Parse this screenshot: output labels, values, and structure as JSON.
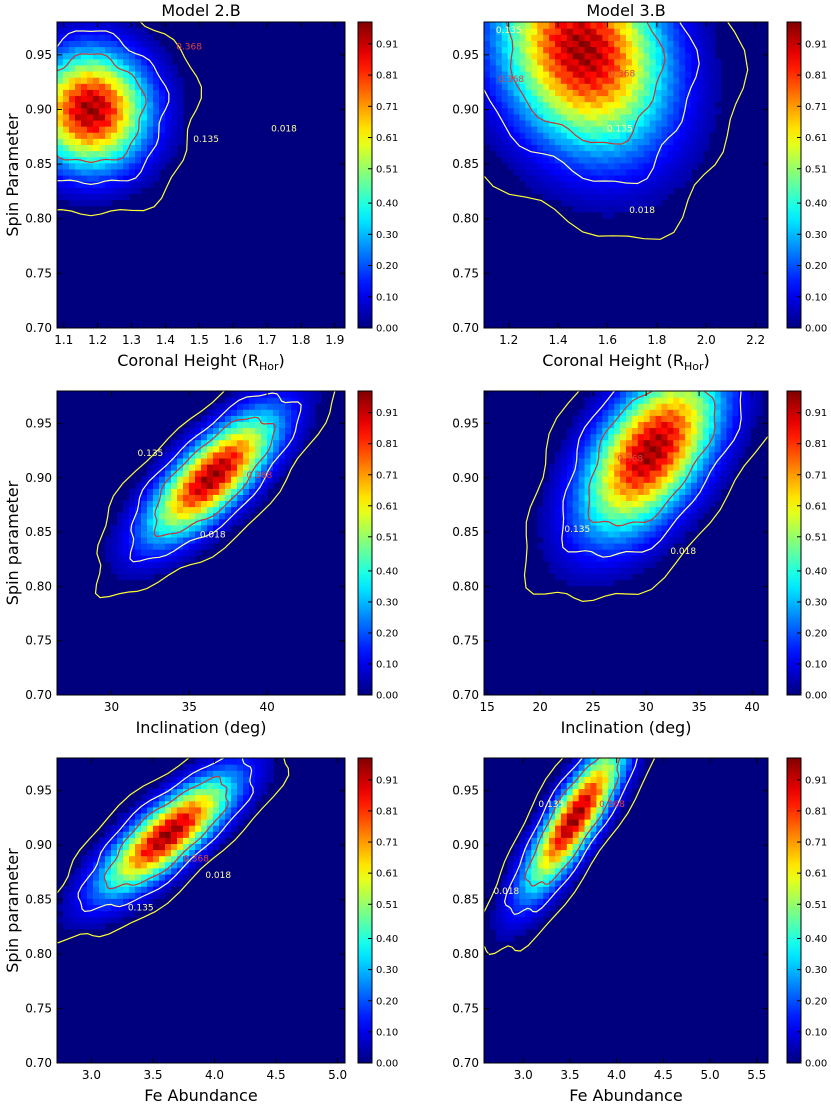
{
  "column_titles": [
    "Model 2.B",
    "Model 3.B"
  ],
  "colorbar_ticks": [
    "0.91",
    "0.81",
    "0.71",
    "0.61",
    "0.51",
    "0.40",
    "0.30",
    "0.20",
    "0.10",
    "0.00"
  ],
  "colors": {
    "low": "#00007f",
    "high": "#7f0000",
    "contour_outer": "#ffff33",
    "contour_mid": "#ffffaa",
    "contour_inner": "#cc3333"
  },
  "chart_data": [
    {
      "type": "heatmap",
      "model": "Model 2.B",
      "title": "Model 2.B",
      "ylabel": "Spin Parameter",
      "xlabel_main": "Coronal Height (R",
      "xlabel_sub": "Hor",
      "xlabel_end": ")",
      "xlim": [
        1.08,
        1.93
      ],
      "ylim": [
        0.7,
        0.98
      ],
      "xticks": [
        1.1,
        1.2,
        1.3,
        1.4,
        1.5,
        1.6,
        1.7,
        1.8,
        1.9
      ],
      "xticklabels": [
        "1.1",
        "1.2",
        "1.3",
        "1.4",
        "1.5",
        "1.6",
        "1.7",
        "1.8",
        "1.9"
      ],
      "yticks": [
        0.7,
        0.75,
        0.8,
        0.85,
        0.9,
        0.95
      ],
      "yticklabels": [
        "0.70",
        "0.75",
        "0.80",
        "0.85",
        "0.90",
        "0.95"
      ],
      "peak": {
        "x": 1.18,
        "y": 0.9,
        "sx": 0.11,
        "sy": 0.035,
        "rho": 0.0
      },
      "contour_labels": [
        {
          "text": "0.368",
          "x": 1.47,
          "y": 0.955
        },
        {
          "text": "0.135",
          "x": 1.52,
          "y": 0.87
        },
        {
          "text": "0.018",
          "x": 1.75,
          "y": 0.88
        }
      ]
    },
    {
      "type": "heatmap",
      "model": "Model 3.B",
      "title": "Model 3.B",
      "ylabel": "",
      "xlabel_main": "Coronal Height (R",
      "xlabel_sub": "Hor",
      "xlabel_end": ")",
      "xlim": [
        1.1,
        2.25
      ],
      "ylim": [
        0.7,
        0.98
      ],
      "xticks": [
        1.2,
        1.4,
        1.6,
        1.8,
        2.0,
        2.2
      ],
      "xticklabels": [
        "1.2",
        "1.4",
        "1.6",
        "1.8",
        "2.0",
        "2.2"
      ],
      "yticks": [
        0.7,
        0.75,
        0.8,
        0.85,
        0.9,
        0.95
      ],
      "yticklabels": [
        "0.70",
        "0.75",
        "0.80",
        "0.85",
        "0.90",
        "0.95"
      ],
      "peak": {
        "x": 1.5,
        "y": 0.955,
        "sx": 0.22,
        "sy": 0.06,
        "rho": -0.2
      },
      "contour_labels": [
        {
          "text": "0.368",
          "x": 1.66,
          "y": 0.93
        },
        {
          "text": "0.135",
          "x": 1.2,
          "y": 0.97
        },
        {
          "text": "0.368",
          "x": 1.21,
          "y": 0.925
        },
        {
          "text": "0.135",
          "x": 1.65,
          "y": 0.88
        },
        {
          "text": "0.018",
          "x": 1.74,
          "y": 0.805
        }
      ]
    },
    {
      "type": "heatmap",
      "model": "Model 2.B",
      "ylabel": "Spin parameter",
      "xlabel": "Inclination (deg)",
      "xlim": [
        26.5,
        45
      ],
      "ylim": [
        0.7,
        0.98
      ],
      "xticks": [
        30,
        35,
        40
      ],
      "xticklabels": [
        "30",
        "35",
        "40"
      ],
      "yticks": [
        0.7,
        0.75,
        0.8,
        0.85,
        0.9,
        0.95
      ],
      "yticklabels": [
        "0.70",
        "0.75",
        "0.80",
        "0.85",
        "0.90",
        "0.95"
      ],
      "peak": {
        "x": 36.5,
        "y": 0.902,
        "sx": 2.7,
        "sy": 0.038,
        "rho": 0.75
      },
      "contour_labels": [
        {
          "text": "0.135",
          "x": 32.5,
          "y": 0.92
        },
        {
          "text": "0.368",
          "x": 39.5,
          "y": 0.9
        },
        {
          "text": "0.018",
          "x": 36.5,
          "y": 0.845
        }
      ]
    },
    {
      "type": "heatmap",
      "model": "Model 3.B",
      "ylabel": "",
      "xlabel": "Inclination (deg)",
      "xlim": [
        14.7,
        41.5
      ],
      "ylim": [
        0.7,
        0.98
      ],
      "xticks": [
        15,
        20,
        25,
        30,
        35,
        40
      ],
      "xticklabels": [
        "15",
        "20",
        "25",
        "30",
        "35",
        "40"
      ],
      "yticks": [
        0.7,
        0.75,
        0.8,
        0.85,
        0.9,
        0.95
      ],
      "yticklabels": [
        "0.70",
        "0.75",
        "0.80",
        "0.85",
        "0.90",
        "0.95"
      ],
      "peak": {
        "x": 30.5,
        "y": 0.925,
        "sx": 4.2,
        "sy": 0.05,
        "rho": 0.55
      },
      "contour_labels": [
        {
          "text": "0.368",
          "x": 28.5,
          "y": 0.915
        },
        {
          "text": "0.135",
          "x": 23.5,
          "y": 0.85
        },
        {
          "text": "0.018",
          "x": 33.5,
          "y": 0.83
        }
      ]
    },
    {
      "type": "heatmap",
      "model": "Model 2.B",
      "ylabel": "Spin parameter",
      "xlabel": "Fe Abundance",
      "xlim": [
        2.72,
        5.06
      ],
      "ylim": [
        0.7,
        0.98
      ],
      "xticks": [
        3.0,
        3.5,
        4.0,
        4.5,
        5.0
      ],
      "xticklabels": [
        "3.0",
        "3.5",
        "4.0",
        "4.5",
        "5.0"
      ],
      "yticks": [
        0.7,
        0.75,
        0.8,
        0.85,
        0.9,
        0.95
      ],
      "yticklabels": [
        "0.70",
        "0.75",
        "0.80",
        "0.85",
        "0.90",
        "0.95"
      ],
      "peak": {
        "x": 3.62,
        "y": 0.91,
        "sx": 0.35,
        "sy": 0.035,
        "rho": 0.8
      },
      "contour_labels": [
        {
          "text": "0.368",
          "x": 3.85,
          "y": 0.885
        },
        {
          "text": "0.135",
          "x": 3.4,
          "y": 0.84
        },
        {
          "text": "0.018",
          "x": 4.03,
          "y": 0.87
        }
      ]
    },
    {
      "type": "heatmap",
      "model": "Model 3.B",
      "ylabel": "",
      "xlabel": "Fe Abundance",
      "xlim": [
        2.58,
        5.62
      ],
      "ylim": [
        0.7,
        0.98
      ],
      "xticks": [
        3.0,
        3.5,
        4.0,
        4.5,
        5.0,
        5.5
      ],
      "xticklabels": [
        "3.0",
        "3.5",
        "4.0",
        "4.5",
        "5.0",
        "5.5"
      ],
      "yticks": [
        0.7,
        0.75,
        0.8,
        0.85,
        0.9,
        0.95
      ],
      "yticklabels": [
        "0.70",
        "0.75",
        "0.80",
        "0.85",
        "0.90",
        "0.95"
      ],
      "peak": {
        "x": 3.55,
        "y": 0.925,
        "sx": 0.35,
        "sy": 0.045,
        "rho": 0.85
      },
      "contour_labels": [
        {
          "text": "0.135",
          "x": 3.3,
          "y": 0.935
        },
        {
          "text": "0.368",
          "x": 3.95,
          "y": 0.935
        },
        {
          "text": "0.018",
          "x": 2.82,
          "y": 0.855
        }
      ]
    }
  ]
}
